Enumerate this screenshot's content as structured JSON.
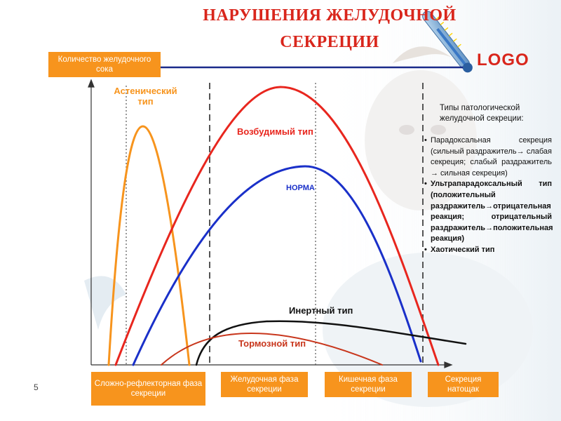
{
  "title": {
    "line1": "НАРУШЕНИЯ ЖЕЛУДОЧНОЙ",
    "line2": "СЕКРЕЦИИ"
  },
  "logo": "LOGO",
  "y_axis_label": "Количество желудочного сока",
  "phases": [
    "Сложно-рефлекторная фаза секреции",
    "Желудочная фаза секреции",
    "Кишечная фаза секреции",
    "Секреция натощак"
  ],
  "curves": {
    "asthenic": {
      "label": "Астенический тип",
      "color": "#f7941d"
    },
    "excitable": {
      "label": "Возбудимый тип",
      "color": "#e8261e"
    },
    "norma": {
      "label": "НОРМА",
      "color": "#1a30c9"
    },
    "inert": {
      "label": "Инертный тип",
      "color": "#111111"
    },
    "inhibitory": {
      "label": "Тормозной тип",
      "color": "#c8361c"
    }
  },
  "sidebar": {
    "heading": "Типы патологической желудочной секреции:",
    "items": [
      "Парадоксальная секреция (сильный раздражитель→ слабая секреция; слабый раздражитель → сильная секреция)",
      "Ультрапарадоксальный тип (положительный раздражитель→отрицательная реакция; отрицательный раздражитель→положительная реакция)",
      "Хаотический тип"
    ]
  },
  "page_number": "5",
  "decor": {
    "thermometer": "thermometer-icon",
    "background_photo": "child-photo"
  }
}
